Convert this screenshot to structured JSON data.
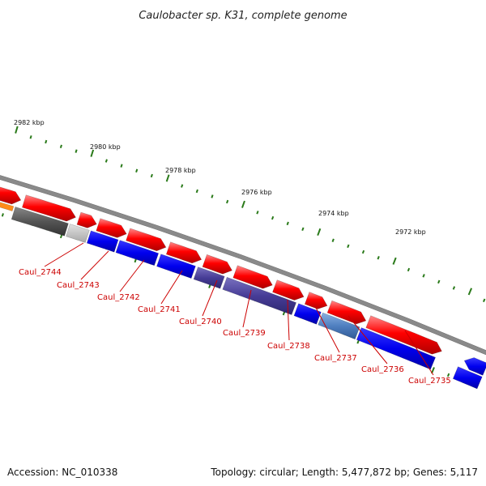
{
  "title": "Caulobacter sp. K31, complete genome",
  "footer": {
    "accession": "Accession: NC_010338",
    "topology": "Topology: circular; Length: 5,477,872 bp; Genes: 5,117"
  },
  "colors": {
    "forward": "#ff0000",
    "reverse": "#0000ee",
    "backbone": "#7a7a7a",
    "tick": "#2a7a1a",
    "label": "#cc0000"
  },
  "tick_labels": [
    "2982 kbp",
    "2980 kbp",
    "2978 kbp",
    "2976 kbp",
    "2974 kbp",
    "2972 kbp"
  ],
  "gene_labels": [
    "Caul_2744",
    "Caul_2743",
    "Caul_2742",
    "Caul_2741",
    "Caul_2740",
    "Caul_2739",
    "Caul_2738",
    "Caul_2737",
    "Caul_2736",
    "Caul_2735"
  ]
}
